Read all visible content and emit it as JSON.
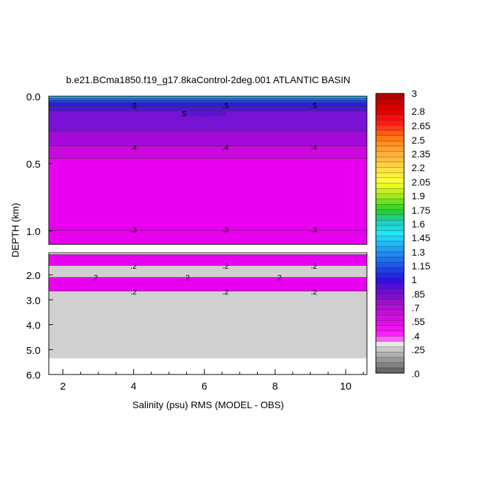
{
  "chart_data": {
    "type": "heatmap",
    "title": "b.e21.BCma1850.f19_g17.8kaControl-2deg.001 ATLANTIC BASIN",
    "xlabel": "Salinity (psu) RMS (MODEL - OBS)",
    "ylabel": "DEPTH (km)",
    "xlim": [
      1.6,
      10.6
    ],
    "x_ticks": [
      "2",
      "4",
      "6",
      "8",
      "10"
    ],
    "upper_panel": {
      "ylim": [
        0.0,
        1.1
      ],
      "y_ticks": [
        "0.0",
        "0.5",
        "1.0"
      ],
      "bands": [
        {
          "from": 0.0,
          "to": 0.015,
          "color": "#1fb8e8"
        },
        {
          "from": 0.015,
          "to": 0.03,
          "color": "#1e6ef0"
        },
        {
          "from": 0.03,
          "to": 0.05,
          "color": "#1a3cf0"
        },
        {
          "from": 0.05,
          "to": 0.075,
          "color": "#2a1fd8"
        },
        {
          "from": 0.075,
          "to": 0.11,
          "color": "#4b14d6"
        },
        {
          "from": 0.11,
          "to": 0.26,
          "color": "#7812d4"
        },
        {
          "from": 0.26,
          "to": 0.37,
          "color": "#a30ad8"
        },
        {
          "from": 0.37,
          "to": 0.46,
          "color": "#cc08e0"
        },
        {
          "from": 0.46,
          "to": 1.1,
          "color": "#ea00f0"
        }
      ],
      "contour_labels": [
        {
          "x": 4.0,
          "y": 0.07,
          "text": ".5"
        },
        {
          "x": 6.6,
          "y": 0.07,
          "text": ".5"
        },
        {
          "x": 9.1,
          "y": 0.07,
          "text": ".5"
        },
        {
          "x": 5.4,
          "y": 0.13,
          "text": ".5"
        },
        {
          "x": 4.0,
          "y": 0.38,
          "text": ".4"
        },
        {
          "x": 6.6,
          "y": 0.38,
          "text": ".4"
        },
        {
          "x": 9.1,
          "y": 0.38,
          "text": ".4"
        },
        {
          "x": 4.0,
          "y": 0.99,
          "text": ".3"
        },
        {
          "x": 6.6,
          "y": 0.99,
          "text": ".3"
        },
        {
          "x": 9.1,
          "y": 0.99,
          "text": ".3"
        }
      ]
    },
    "lower_panel": {
      "ylim": [
        1.3,
        6.0
      ],
      "y_ticks": [
        "2.0",
        "3.0",
        "4.0",
        "5.0",
        "6.0"
      ],
      "y_tick_values": [
        2.0,
        3.0,
        4.0,
        5.0,
        6.0
      ],
      "bands": [
        {
          "from": 1.3,
          "to": 1.35,
          "color": "#ffffff"
        },
        {
          "from": 1.35,
          "to": 1.7,
          "color": "#ea00f0"
        },
        {
          "from": 1.7,
          "to": 2.1,
          "color": "#d0d0d0"
        },
        {
          "from": 2.1,
          "to": 2.65,
          "color": "#ea00f0"
        },
        {
          "from": 2.65,
          "to": 5.35,
          "color": "#d0d0d0"
        },
        {
          "from": 5.35,
          "to": 6.0,
          "color": "#ffffff"
        }
      ],
      "contour_labels": [
        {
          "x": 4.0,
          "y": 1.72,
          "text": ".2"
        },
        {
          "x": 6.6,
          "y": 1.72,
          "text": ".2"
        },
        {
          "x": 9.1,
          "y": 1.72,
          "text": ".2"
        },
        {
          "x": 2.9,
          "y": 2.1,
          "text": ".2"
        },
        {
          "x": 5.5,
          "y": 2.1,
          "text": ".2"
        },
        {
          "x": 8.1,
          "y": 2.1,
          "text": ".2"
        },
        {
          "x": 4.0,
          "y": 2.68,
          "text": ".2"
        },
        {
          "x": 6.6,
          "y": 2.68,
          "text": ".2"
        },
        {
          "x": 9.1,
          "y": 2.68,
          "text": ".2"
        }
      ]
    },
    "colorbar": {
      "labels": [
        "3",
        "2.8",
        "2.65",
        "2.5",
        "2.35",
        "2.2",
        "2.05",
        "1.9",
        "1.75",
        "1.6",
        "1.45",
        "1.3",
        "1.15",
        "1",
        ".85",
        ".7",
        ".55",
        ".4",
        ".25",
        ".0"
      ],
      "colors_top_to_bottom": [
        "#b80000",
        "#c80000",
        "#d80000",
        "#e60000",
        "#f21010",
        "#ff1a1a",
        "#ff3a1a",
        "#ff5a10",
        "#ff7a10",
        "#ff9020",
        "#ffa030",
        "#ffb040",
        "#ffc040",
        "#ffd040",
        "#ffe040",
        "#fff040",
        "#ffff40",
        "#e8ff20",
        "#c8f020",
        "#a0e820",
        "#70e020",
        "#40d820",
        "#20d040",
        "#20d080",
        "#20d0c0",
        "#20d8e0",
        "#20e8f0",
        "#20d0f8",
        "#20b8f8",
        "#20a0f0",
        "#2088f0",
        "#2070e8",
        "#2058e8",
        "#2040e0",
        "#2028e0",
        "#3010e0",
        "#5010d8",
        "#6a10d0",
        "#8010c8",
        "#9a10c8",
        "#b010d0",
        "#c010d8",
        "#d010e0",
        "#e010e8",
        "#f010f0",
        "#ff20ff",
        "#ff60ff",
        "#e8e8e8",
        "#c8c8c8",
        "#b0b0b0",
        "#989898",
        "#808080",
        "#686868"
      ]
    }
  }
}
